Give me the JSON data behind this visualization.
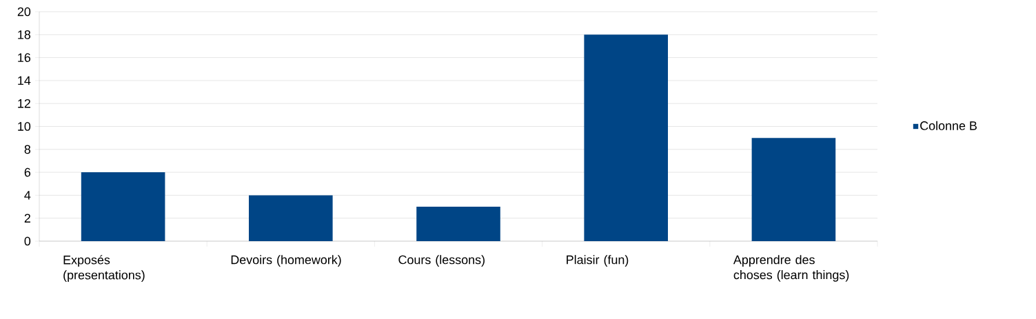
{
  "chart_data": {
    "type": "bar",
    "categories": [
      "Exposés (presentations)",
      "Devoirs (homework)",
      "Cours (lessons)",
      "Plaisir (fun)",
      "Apprendre des choses (learn things)"
    ],
    "series": [
      {
        "name": "Colonne B",
        "color": "#004586",
        "values": [
          6,
          4,
          3,
          18,
          9
        ]
      }
    ],
    "ylim": [
      0,
      20
    ],
    "yticks": [
      0,
      2,
      4,
      6,
      8,
      10,
      12,
      14,
      16,
      18,
      20
    ],
    "grid": "y",
    "legend": "right"
  }
}
